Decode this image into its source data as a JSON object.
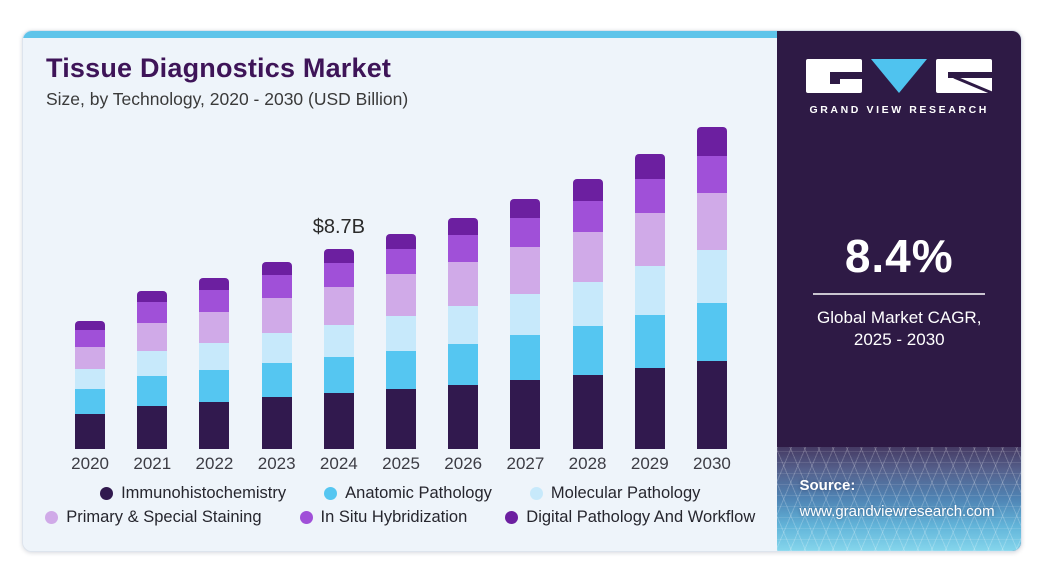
{
  "header": {
    "title": "Tissue Diagnostics Market",
    "subtitle": "Size, by Technology, 2020 - 2030 (USD Billion)"
  },
  "chart_data": {
    "type": "bar",
    "subtype": "stacked-vertical",
    "title": "Tissue Diagnostics Market Size, by Technology, 2020 - 2030 (USD Billion)",
    "unit": "USD Billion",
    "categories": [
      "2020",
      "2021",
      "2022",
      "2023",
      "2024",
      "2025",
      "2026",
      "2027",
      "2028",
      "2029",
      "2030"
    ],
    "series": [
      {
        "name": "Immunohistochemistry",
        "color": "#31194e",
        "values": [
          1.52,
          1.88,
          2.05,
          2.25,
          2.42,
          2.61,
          2.79,
          3.01,
          3.23,
          3.52,
          3.83
        ]
      },
      {
        "name": "Anatomic Pathology",
        "color": "#55c6f1",
        "values": [
          1.09,
          1.31,
          1.4,
          1.5,
          1.57,
          1.65,
          1.79,
          1.94,
          2.1,
          2.3,
          2.52
        ]
      },
      {
        "name": "Molecular Pathology",
        "color": "#c7e9fb",
        "values": [
          0.87,
          1.08,
          1.18,
          1.3,
          1.41,
          1.52,
          1.64,
          1.78,
          1.93,
          2.12,
          2.31
        ]
      },
      {
        "name": "Primary & Special Staining",
        "color": "#d0aae8",
        "values": [
          0.96,
          1.22,
          1.35,
          1.51,
          1.65,
          1.82,
          1.92,
          2.05,
          2.16,
          2.32,
          2.48
        ]
      },
      {
        "name": "In Situ Hybridization",
        "color": "#a050d8",
        "values": [
          0.74,
          0.89,
          0.94,
          1.0,
          1.04,
          1.08,
          1.17,
          1.26,
          1.36,
          1.48,
          1.61
        ]
      },
      {
        "name": "Digital Pathology And Workflow",
        "color": "#6c1fa0",
        "values": [
          0.39,
          0.48,
          0.52,
          0.57,
          0.61,
          0.65,
          0.74,
          0.85,
          0.96,
          1.1,
          1.26
        ]
      }
    ],
    "totals": [
      5.57,
      6.87,
      7.44,
      8.13,
      8.7,
      9.35,
      10.05,
      10.89,
      11.74,
      12.84,
      14.01
    ],
    "annotation": {
      "category": "2024",
      "text": "$8.7B"
    },
    "ylim": [
      0,
      14.5
    ],
    "grid": false,
    "y_axis_shown": false,
    "legend_position": "bottom",
    "legend_rows": [
      3,
      3
    ]
  },
  "sidebar": {
    "logo_text": "GRAND VIEW RESEARCH",
    "cagr_value": "8.4%",
    "cagr_line1": "Global Market CAGR,",
    "cagr_line2": "2025 - 2030",
    "source_label": "Source:",
    "source_url": "www.grandviewresearch.com"
  },
  "colors": {
    "accent_strip": "#5ec4ea",
    "panel_background": "#eef4fa",
    "brand_panel_background": "#2e1a45",
    "title_text": "#3e1458",
    "logo_triangle": "#4fc3ef"
  }
}
